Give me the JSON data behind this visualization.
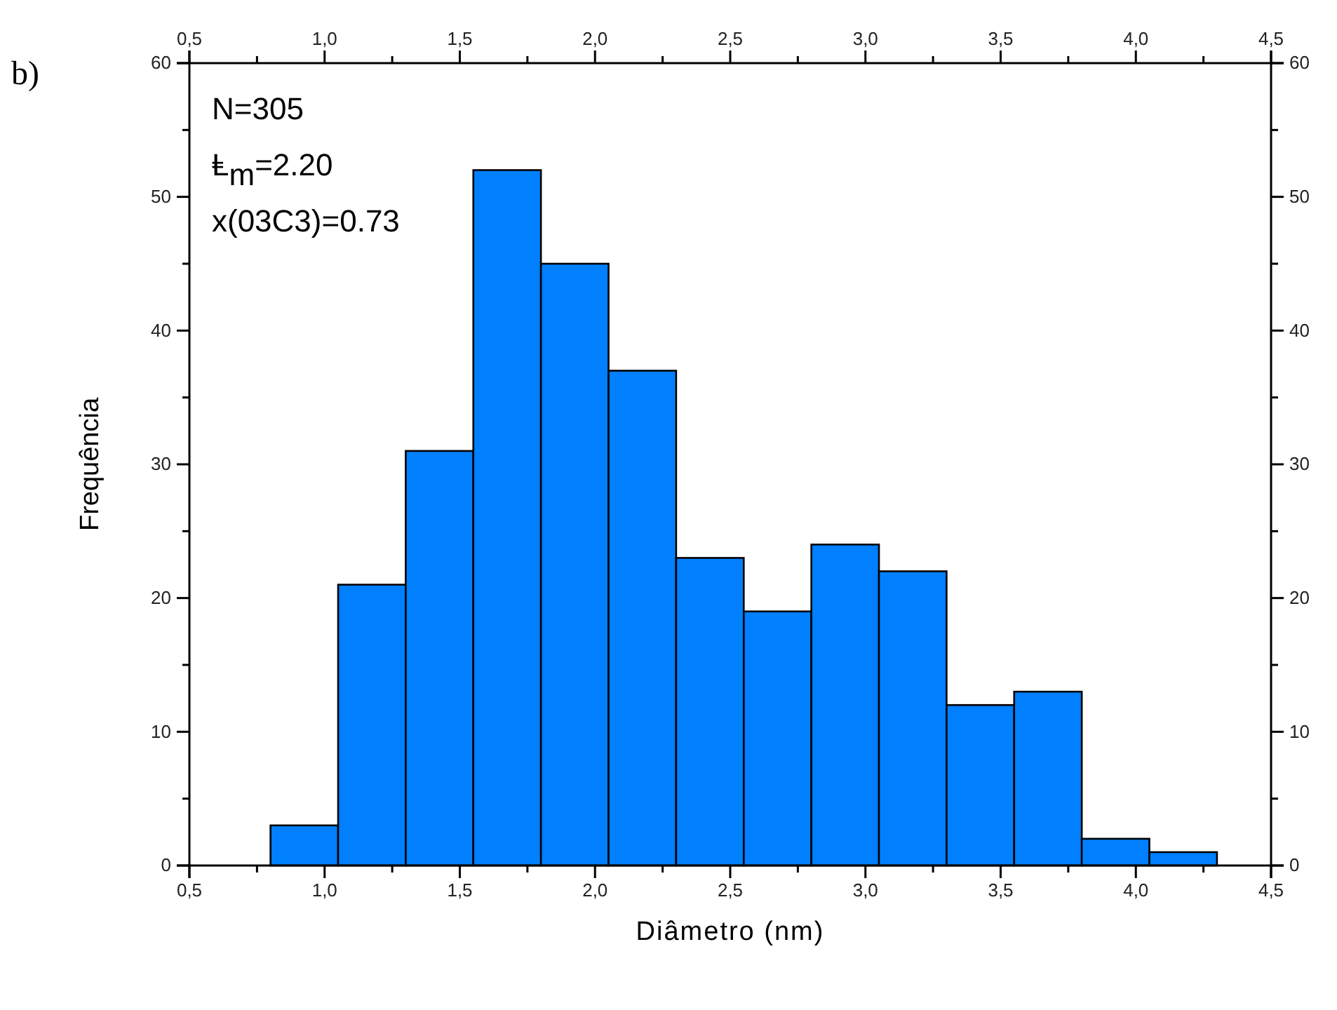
{
  "chart_data": {
    "type": "histogram",
    "xlabel": "Diâmetro (nm)",
    "ylabel": "Frequência",
    "bins": [
      0.8,
      1.05,
      1.3,
      1.55,
      1.8,
      2.05,
      2.3,
      2.55,
      2.8,
      3.05,
      3.3,
      3.55,
      3.8,
      4.05,
      4.3
    ],
    "values": [
      3,
      21,
      31,
      52,
      45,
      37,
      23,
      19,
      24,
      22,
      12,
      13,
      2,
      1
    ],
    "color": "#0080ff",
    "xlim": [
      0.5,
      4.5
    ],
    "xticks": [
      {
        "value": 0.5,
        "label": "0,5"
      },
      {
        "value": 0.75,
        "label": null
      },
      {
        "value": 1.0,
        "label": "1,0"
      },
      {
        "value": 1.25,
        "label": null
      },
      {
        "value": 1.5,
        "label": "1,5"
      },
      {
        "value": 1.75,
        "label": null
      },
      {
        "value": 2.0,
        "label": "2,0"
      },
      {
        "value": 2.25,
        "label": null
      },
      {
        "value": 2.5,
        "label": "2,5"
      },
      {
        "value": 2.75,
        "label": null
      },
      {
        "value": 3.0,
        "label": "3,0"
      },
      {
        "value": 3.25,
        "label": null
      },
      {
        "value": 3.5,
        "label": "3,5"
      },
      {
        "value": 3.75,
        "label": null
      },
      {
        "value": 4.0,
        "label": "4,0"
      },
      {
        "value": 4.25,
        "label": null
      },
      {
        "value": 4.5,
        "label": "4,5"
      }
    ],
    "x2lim": [
      0.5,
      4.5
    ],
    "x2ticks": [
      {
        "value": 0.5,
        "label": "0,5"
      },
      {
        "value": 0.75,
        "label": null
      },
      {
        "value": 1.0,
        "label": "1,0"
      },
      {
        "value": 1.25,
        "label": null
      },
      {
        "value": 1.5,
        "label": "1,5"
      },
      {
        "value": 1.75,
        "label": null
      },
      {
        "value": 2.0,
        "label": "2,0"
      },
      {
        "value": 2.25,
        "label": null
      },
      {
        "value": 2.5,
        "label": "2,5"
      },
      {
        "value": 2.75,
        "label": null
      },
      {
        "value": 3.0,
        "label": "3,0"
      },
      {
        "value": 3.25,
        "label": null
      },
      {
        "value": 3.5,
        "label": "3,5"
      },
      {
        "value": 3.75,
        "label": null
      },
      {
        "value": 4.0,
        "label": "4,0"
      },
      {
        "value": 4.25,
        "label": null
      },
      {
        "value": 4.5,
        "label": "4,5"
      }
    ],
    "ylim": [
      0,
      60
    ],
    "yticks": [
      0,
      {
        "value": 5,
        "label": null
      },
      10,
      {
        "value": 15,
        "label": null
      },
      20,
      {
        "value": 25,
        "label": null
      },
      30,
      {
        "value": 35,
        "label": null
      },
      40,
      {
        "value": 45,
        "label": null
      },
      50,
      {
        "value": 55,
        "label": null
      },
      60
    ],
    "y2lim": [
      0,
      60
    ],
    "y2ticks": [
      0,
      {
        "value": 5,
        "label": null
      },
      10,
      {
        "value": 15,
        "label": null
      },
      20,
      {
        "value": 25,
        "label": null
      },
      30,
      {
        "value": 35,
        "label": null
      },
      40,
      {
        "value": 45,
        "label": null
      },
      50,
      {
        "value": 55,
        "label": null
      },
      60
    ],
    "grid": false,
    "annotations": [
      "b)",
      "N=305",
      "Ⱡ$_{m}$=2.20",
      "x(03C3)=0.73"
    ]
  }
}
